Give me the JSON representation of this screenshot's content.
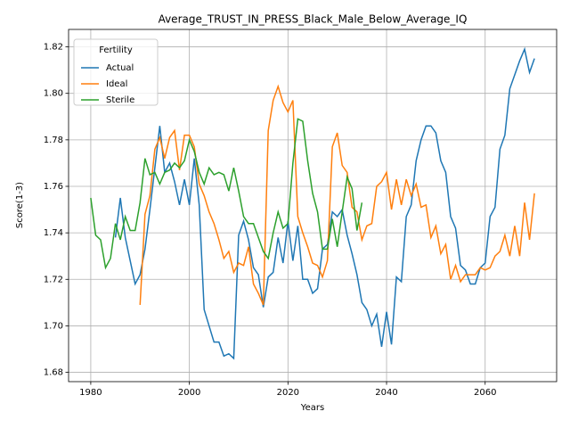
{
  "chart_data": {
    "type": "line",
    "title": "Average_TRUST_IN_PRESS_Black_Male_Below_Average_IQ",
    "x_label": "Years",
    "y_label": "Score(1-3)",
    "legend_title": "Fertility",
    "legend_loc": "upper left",
    "grid": true,
    "xlim": [
      1975.5,
      2074.5
    ],
    "ylim": [
      1.676,
      1.8275
    ],
    "xticks": [
      1980,
      2000,
      2020,
      2040,
      2060
    ],
    "yticks": [
      1.68,
      {
        "value": 1.7,
        "label": "1.70"
      },
      1.72,
      1.74,
      1.76,
      1.78,
      {
        "value": 1.8,
        "label": "1.80"
      },
      1.82
    ],
    "x": [
      1980,
      1981,
      1982,
      1983,
      1984,
      1985,
      1986,
      1987,
      1988,
      1989,
      1990,
      1991,
      1992,
      1993,
      1994,
      1995,
      1996,
      1997,
      1998,
      1999,
      2000,
      2001,
      2002,
      2003,
      2004,
      2005,
      2006,
      2007,
      2008,
      2009,
      2010,
      2011,
      2012,
      2013,
      2014,
      2015,
      2016,
      2017,
      2018,
      2019,
      2020,
      2021,
      2022,
      2023,
      2024,
      2025,
      2026,
      2027,
      2028,
      2029,
      2030,
      2031,
      2032,
      2033,
      2034,
      2035,
      2036,
      2037,
      2038,
      2039,
      2040,
      2041,
      2042,
      2043,
      2044,
      2045,
      2046,
      2047,
      2048,
      2049,
      2050,
      2051,
      2052,
      2053,
      2054,
      2055,
      2056,
      2057,
      2058,
      2059,
      2060,
      2061,
      2062,
      2063,
      2064,
      2065,
      2066,
      2067,
      2068,
      2069,
      2070
    ],
    "series": [
      {
        "name": "Actual",
        "color": "#1f77b4",
        "values": [
          null,
          null,
          null,
          null,
          null,
          1.738,
          1.755,
          1.738,
          1.728,
          1.718,
          1.722,
          1.733,
          1.75,
          1.768,
          1.786,
          1.766,
          1.77,
          1.762,
          1.752,
          1.763,
          1.752,
          1.772,
          1.752,
          1.707,
          1.7,
          1.693,
          1.693,
          1.687,
          1.688,
          1.686,
          1.739,
          1.745,
          1.737,
          1.725,
          1.722,
          1.708,
          1.721,
          1.723,
          1.738,
          1.727,
          1.745,
          1.728,
          1.743,
          1.72,
          1.72,
          1.714,
          1.716,
          1.733,
          1.735,
          1.749,
          1.747,
          1.75,
          1.739,
          1.731,
          1.722,
          1.71,
          1.707,
          1.7,
          1.705,
          1.691,
          1.706,
          1.692,
          1.721,
          1.719,
          1.747,
          1.752,
          1.771,
          1.78,
          1.786,
          1.786,
          1.783,
          1.771,
          1.766,
          1.747,
          1.742,
          1.726,
          1.724,
          1.718,
          1.718,
          1.725,
          1.727,
          1.747,
          1.751,
          1.776,
          1.782,
          1.802,
          1.808,
          1.814,
          1.819,
          1.809,
          1.815
        ]
      },
      {
        "name": "Ideal",
        "color": "#ff7f0e",
        "values": [
          null,
          null,
          null,
          null,
          null,
          null,
          null,
          null,
          null,
          null,
          1.709,
          1.748,
          1.756,
          1.776,
          1.781,
          1.772,
          1.781,
          1.784,
          1.767,
          1.782,
          1.782,
          1.777,
          1.761,
          1.756,
          1.749,
          1.744,
          1.737,
          1.729,
          1.732,
          1.723,
          1.727,
          1.726,
          1.734,
          1.718,
          1.714,
          1.709,
          1.784,
          1.797,
          1.803,
          1.796,
          1.792,
          1.797,
          1.747,
          1.74,
          1.734,
          1.727,
          1.726,
          1.721,
          1.728,
          1.777,
          1.783,
          1.769,
          1.766,
          1.751,
          1.749,
          1.737,
          1.743,
          1.744,
          1.76,
          1.762,
          1.766,
          1.75,
          1.763,
          1.752,
          1.763,
          1.756,
          1.761,
          1.751,
          1.752,
          1.738,
          1.743,
          1.731,
          1.735,
          1.72,
          1.726,
          1.719,
          1.722,
          1.722,
          1.722,
          1.725,
          1.724,
          1.725,
          1.73,
          1.732,
          1.739,
          1.73,
          1.743,
          1.73,
          1.753,
          1.737,
          1.757
        ]
      },
      {
        "name": "Sterile",
        "color": "#2ca02c",
        "values": [
          1.755,
          1.739,
          1.737,
          1.725,
          1.729,
          1.744,
          1.737,
          1.747,
          1.741,
          1.741,
          1.753,
          1.772,
          1.765,
          1.766,
          1.761,
          1.766,
          1.767,
          1.77,
          1.768,
          1.771,
          1.78,
          1.775,
          1.766,
          1.761,
          1.768,
          1.765,
          1.766,
          1.765,
          1.758,
          1.768,
          1.758,
          1.747,
          1.744,
          1.744,
          1.738,
          1.732,
          1.729,
          1.74,
          1.749,
          1.742,
          1.744,
          1.77,
          1.789,
          1.788,
          1.771,
          1.757,
          1.749,
          1.733,
          1.733,
          1.746,
          1.734,
          1.749,
          1.764,
          1.759,
          1.741,
          1.753,
          null,
          null,
          null,
          null,
          null,
          null,
          null,
          null,
          null,
          null,
          null,
          null,
          null,
          null,
          null,
          null,
          null,
          null,
          null,
          null,
          null,
          null,
          null,
          null,
          null,
          null,
          null,
          null,
          null,
          null,
          null,
          null,
          null,
          null,
          null
        ]
      }
    ]
  }
}
